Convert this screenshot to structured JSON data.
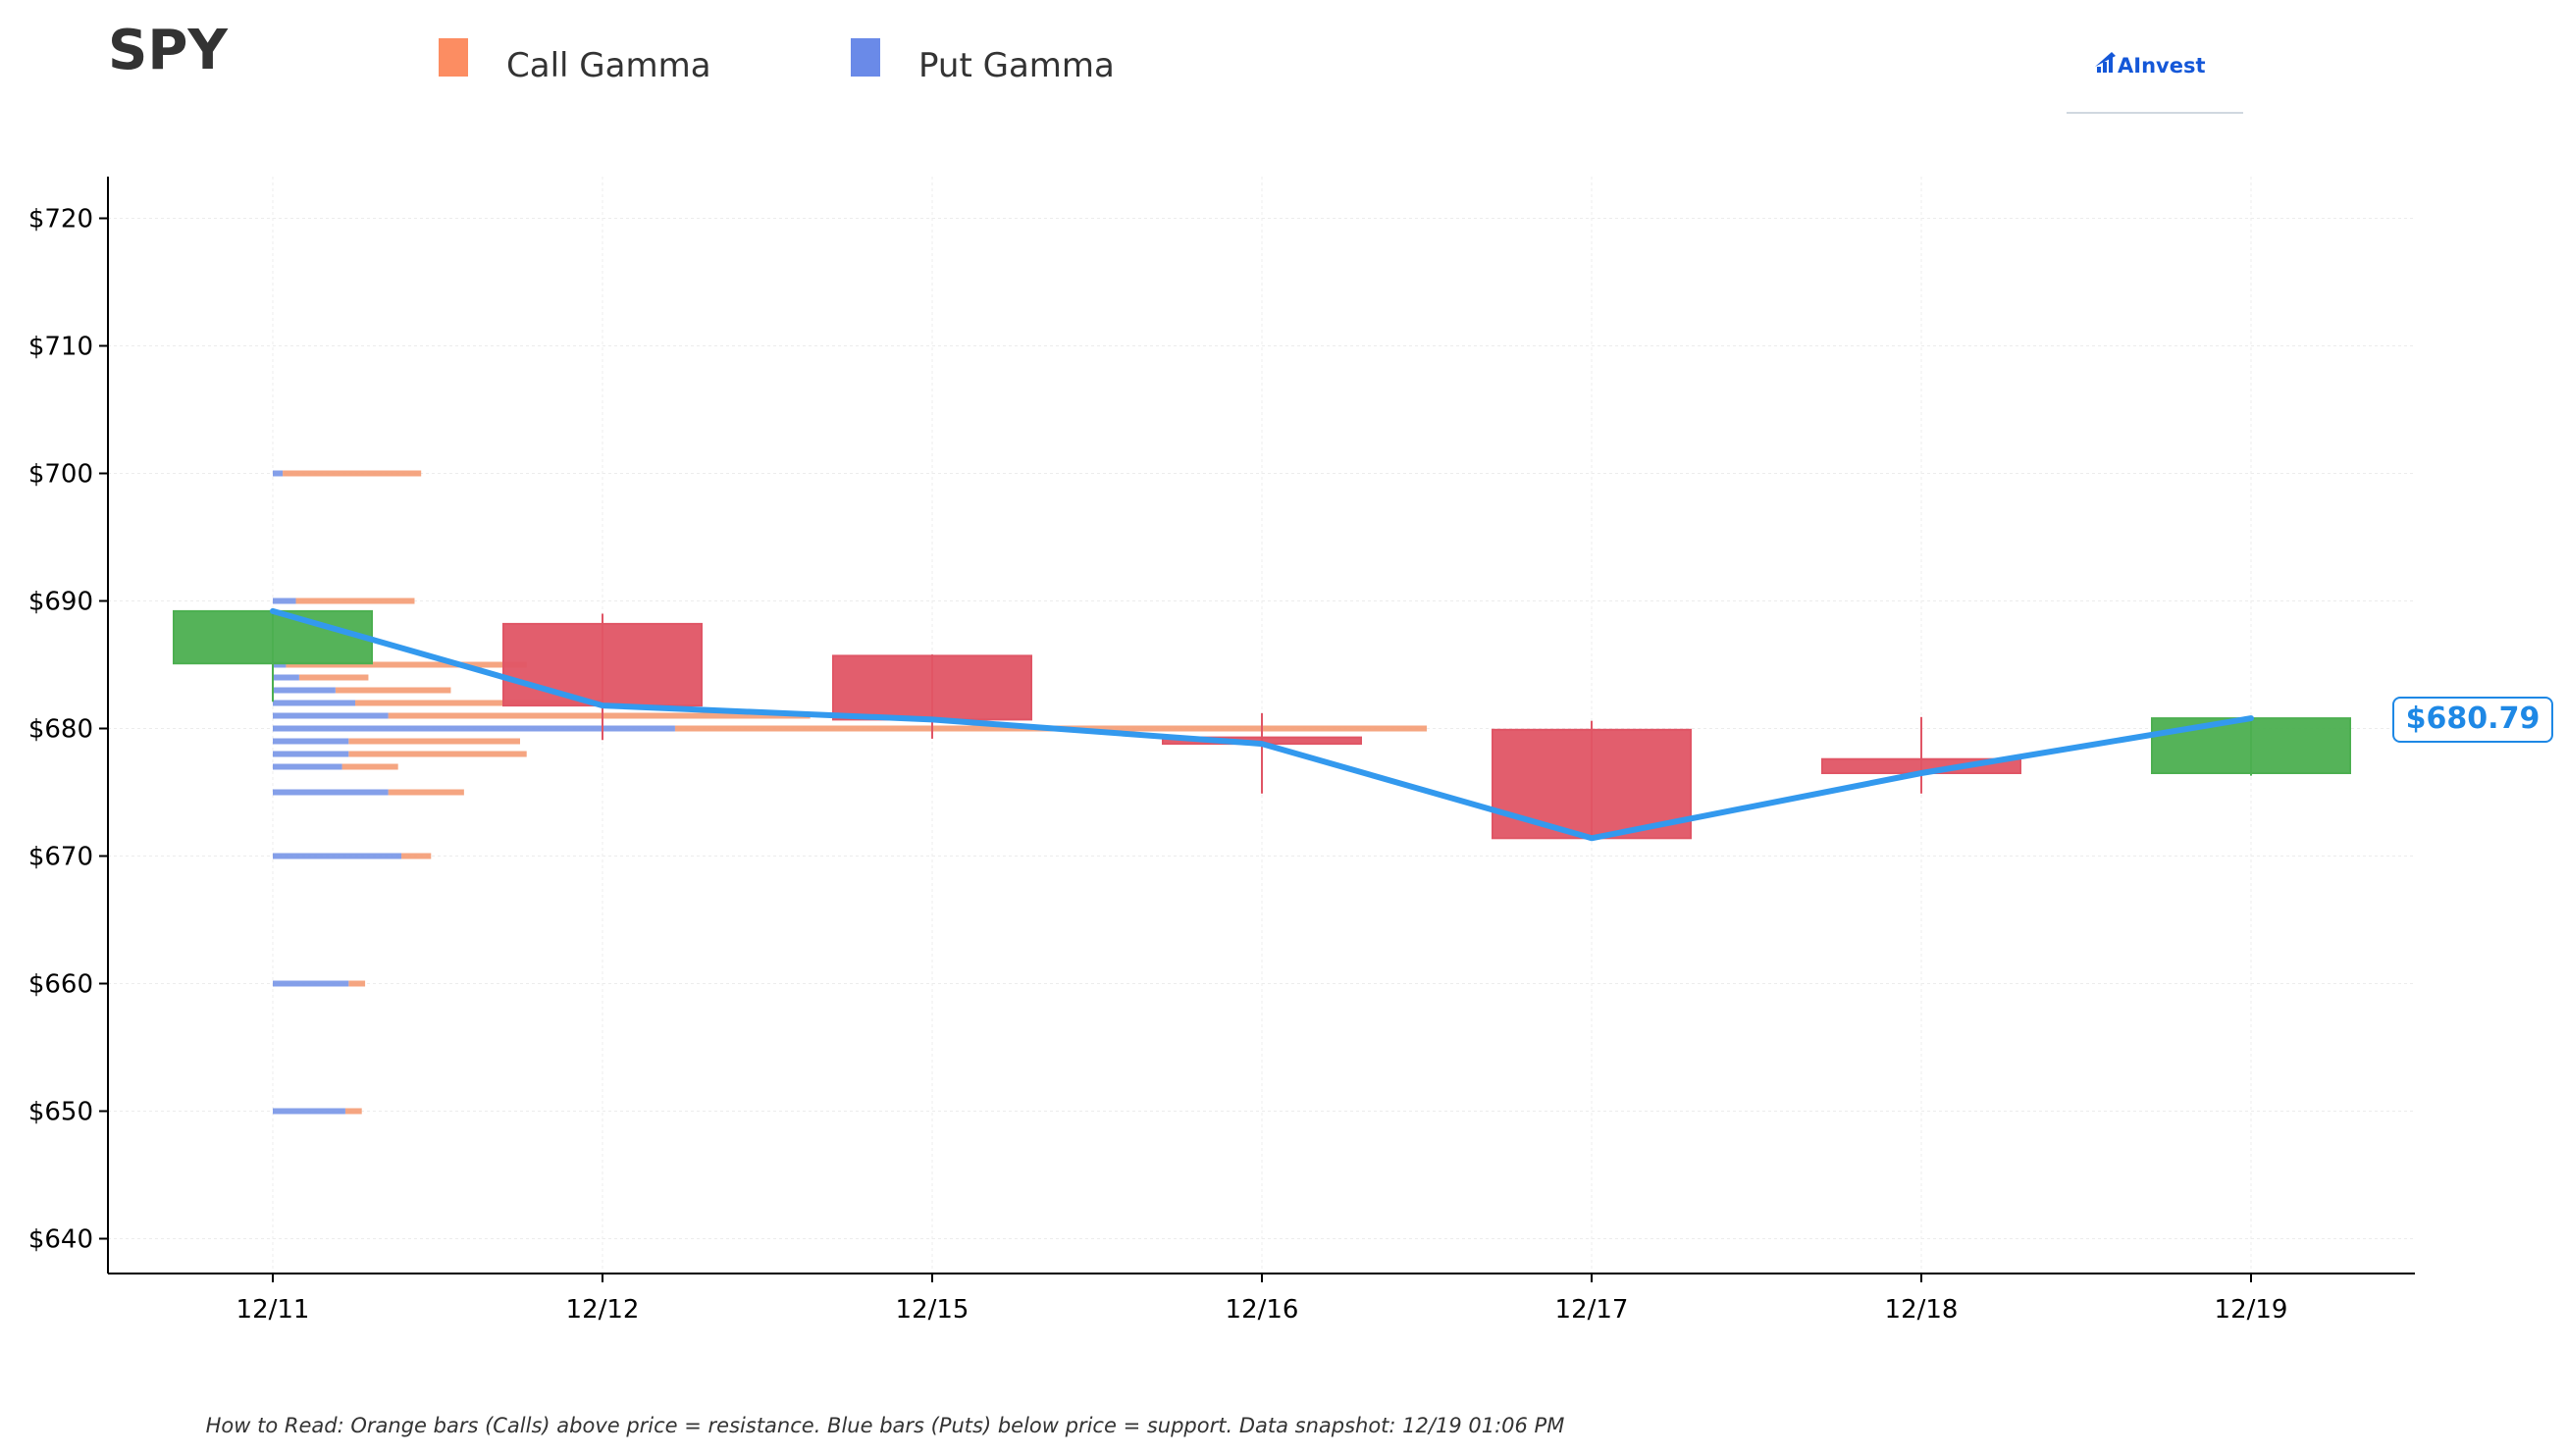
{
  "ticker": "SPY",
  "brand": {
    "name": "AInvest"
  },
  "legend": [
    {
      "label": "Call Gamma",
      "color": "#fc8d62"
    },
    {
      "label": "Put Gamma",
      "color": "#6a8ae8"
    }
  ],
  "footnote": "How to Read: Orange bars (Calls) above price = resistance. Blue bars (Puts) below price = support. Data snapshot: 12/19 01:06 PM",
  "current_price_label": "$680.79",
  "colors": {
    "up": "#4caf50",
    "down": "#e05565",
    "close_line": "#3399ee",
    "call": "#f4a07a",
    "put": "#7d9ae8"
  },
  "chart_data": {
    "type": "candlestick",
    "title": "",
    "xlabel": "",
    "ylabel": "",
    "categories": [
      "12/11",
      "12/12",
      "12/15",
      "12/16",
      "12/17",
      "12/18",
      "12/19"
    ],
    "ylim": [
      637,
      723
    ],
    "yticks": [
      640,
      650,
      660,
      670,
      680,
      690,
      700,
      710,
      720
    ],
    "ytick_labels": [
      "$640",
      "$650",
      "$660",
      "$670",
      "$680",
      "$690",
      "$700",
      "$710",
      "$720"
    ],
    "grid": true,
    "legend_position": "top",
    "candles": [
      {
        "date": "12/11",
        "open": 685.1,
        "high": 689.2,
        "low": 682.1,
        "close": 689.2
      },
      {
        "date": "12/12",
        "open": 688.2,
        "high": 689.0,
        "low": 679.1,
        "close": 681.8
      },
      {
        "date": "12/15",
        "open": 685.7,
        "high": 685.8,
        "low": 679.2,
        "close": 680.7
      },
      {
        "date": "12/16",
        "open": 679.3,
        "high": 681.2,
        "low": 674.9,
        "close": 678.8
      },
      {
        "date": "12/17",
        "open": 679.9,
        "high": 680.6,
        "low": 671.4,
        "close": 671.4
      },
      {
        "date": "12/18",
        "open": 677.6,
        "high": 680.9,
        "low": 674.9,
        "close": 676.5
      },
      {
        "date": "12/19",
        "open": 676.5,
        "high": 680.9,
        "low": 676.3,
        "close": 680.8
      }
    ],
    "close_series": {
      "x": [
        "12/11",
        "12/12",
        "12/15",
        "12/16",
        "12/17",
        "12/18",
        "12/19"
      ],
      "values": [
        689.2,
        681.8,
        680.7,
        678.8,
        671.4,
        676.5,
        680.8
      ]
    },
    "gamma_by_strike": {
      "x_unit": "fraction of one date interval",
      "strikes": [
        700,
        690,
        685,
        684,
        683,
        682,
        681,
        680,
        679,
        678,
        677,
        675,
        670,
        660,
        650
      ],
      "put": [
        0.03,
        0.07,
        0.04,
        0.08,
        0.19,
        0.25,
        0.35,
        1.22,
        0.23,
        0.23,
        0.21,
        0.35,
        0.39,
        0.23,
        0.22
      ],
      "call": [
        0.42,
        0.36,
        0.73,
        0.21,
        0.35,
        0.75,
        1.28,
        2.28,
        0.52,
        0.54,
        0.17,
        0.23,
        0.09,
        0.05,
        0.05
      ]
    }
  }
}
